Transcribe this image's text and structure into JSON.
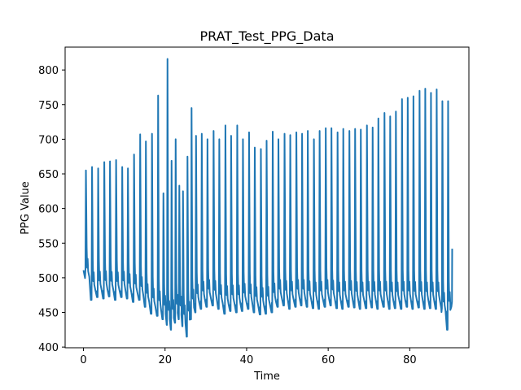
{
  "chart_data": {
    "type": "line",
    "title": "PRAT_Test_PPG_Data",
    "xlabel": "Time",
    "ylabel": "PPG Value",
    "xlim": [
      -4.5,
      94.5
    ],
    "ylim": [
      399,
      833
    ],
    "xticks": [
      0,
      20,
      40,
      60,
      80
    ],
    "yticks": [
      400,
      450,
      500,
      550,
      600,
      650,
      700,
      750,
      800
    ],
    "grid": false,
    "line_color": "#1f77b4",
    "series": [
      {
        "beat_times": [
          0.6,
          2.1,
          3.6,
          5.1,
          6.5,
          8.0,
          9.5,
          10.9,
          12.4,
          13.9,
          15.3,
          16.8,
          18.3,
          19.6,
          20.6,
          21.6,
          22.6,
          23.5,
          24.4,
          25.5,
          26.5,
          27.6,
          29.0,
          30.4,
          31.9,
          33.3,
          34.8,
          36.2,
          37.7,
          39.1,
          40.6,
          42.0,
          43.5,
          44.9,
          46.4,
          47.8,
          49.3,
          50.7,
          52.2,
          53.6,
          55.0,
          56.5,
          57.9,
          59.4,
          60.8,
          62.3,
          63.7,
          65.2,
          66.6,
          68.0,
          69.5,
          70.9,
          72.3,
          73.8,
          75.2,
          76.6,
          78.1,
          79.5,
          80.9,
          82.4,
          83.8,
          85.2,
          86.6,
          88.0,
          89.4
        ],
        "peak_values": [
          655,
          660,
          658,
          667,
          668,
          670,
          660,
          658,
          678,
          707,
          697,
          708,
          763,
          622,
          816,
          669,
          700,
          633,
          625,
          675,
          745,
          705,
          708,
          700,
          712,
          700,
          720,
          705,
          720,
          700,
          710,
          688,
          686,
          698,
          711,
          700,
          708,
          706,
          710,
          708,
          712,
          700,
          712,
          716,
          716,
          710,
          715,
          712,
          715,
          714,
          720,
          717,
          730,
          738,
          733,
          740,
          758,
          760,
          762,
          770,
          773,
          767,
          772,
          755,
          755
        ],
        "trough_values": [
          468,
          472,
          470,
          473,
          468,
          472,
          470,
          465,
          468,
          458,
          448,
          445,
          440,
          432,
          425,
          435,
          440,
          430,
          415,
          440,
          450,
          455,
          458,
          460,
          455,
          448,
          452,
          450,
          452,
          455,
          450,
          447,
          448,
          450,
          458,
          460,
          455,
          458,
          460,
          458,
          456,
          455,
          458,
          460,
          456,
          455,
          458,
          457,
          455,
          456,
          457,
          455,
          458,
          455,
          456,
          455,
          458,
          455,
          457,
          455,
          456,
          455,
          456,
          425,
          458
        ],
        "start": {
          "x": 0,
          "y": 511
        },
        "end": {
          "x": 90.4,
          "y": 542
        }
      }
    ]
  }
}
